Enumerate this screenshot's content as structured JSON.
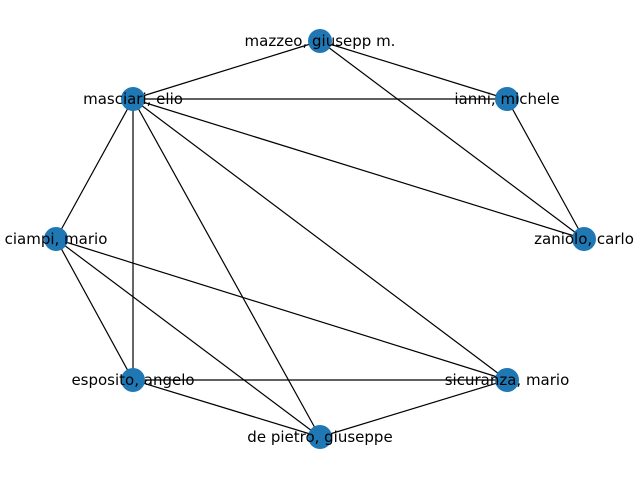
{
  "graph": {
    "node_color": "#1f77b4",
    "edge_color": "#000000",
    "nodes": [
      {
        "id": "mazzeo",
        "label": "mazzeo, giusepp m."
      },
      {
        "id": "ianni",
        "label": "ianni, michele"
      },
      {
        "id": "masciari",
        "label": "masciari, elio"
      },
      {
        "id": "zaniolo",
        "label": "zaniolo, carlo"
      },
      {
        "id": "ciampi",
        "label": "ciampi, mario"
      },
      {
        "id": "esposito",
        "label": "esposito, angelo"
      },
      {
        "id": "sicuranza",
        "label": "sicuranza, mario"
      },
      {
        "id": "depietro",
        "label": "de pietro, giuseppe"
      }
    ],
    "edges": [
      [
        "mazzeo",
        "masciari"
      ],
      [
        "mazzeo",
        "ianni"
      ],
      [
        "mazzeo",
        "zaniolo"
      ],
      [
        "masciari",
        "ianni"
      ],
      [
        "ianni",
        "zaniolo"
      ],
      [
        "masciari",
        "zaniolo"
      ],
      [
        "masciari",
        "ciampi"
      ],
      [
        "masciari",
        "esposito"
      ],
      [
        "masciari",
        "depietro"
      ],
      [
        "masciari",
        "sicuranza"
      ],
      [
        "ciampi",
        "esposito"
      ],
      [
        "ciampi",
        "depietro"
      ],
      [
        "ciampi",
        "sicuranza"
      ],
      [
        "esposito",
        "sicuranza"
      ],
      [
        "esposito",
        "depietro"
      ],
      [
        "depietro",
        "sicuranza"
      ]
    ]
  }
}
